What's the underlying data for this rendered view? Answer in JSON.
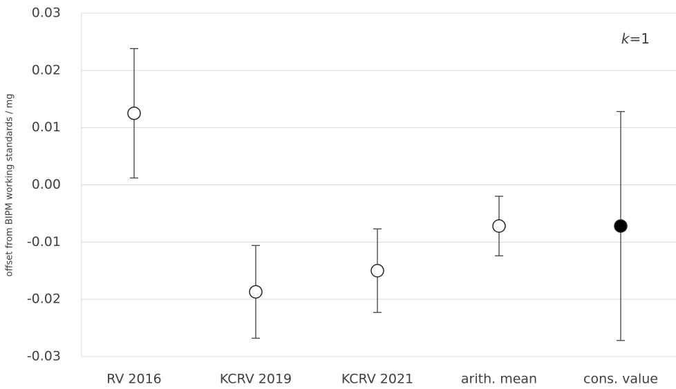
{
  "chart_data": {
    "type": "errorbar",
    "ylabel": "offset from BIPM working standards / mg",
    "annotation": "k=1",
    "categories": [
      "RV 2016",
      "KCRV 2019",
      "KCRV 2021",
      "arith. mean",
      "cons. value"
    ],
    "values": [
      0.0125,
      -0.0187,
      -0.015,
      -0.0072,
      -0.0072
    ],
    "errors": [
      0.0113,
      0.0081,
      0.0073,
      0.0052,
      0.02
    ],
    "marker_fills": [
      "#ffffff",
      "#ffffff",
      "#ffffff",
      "#ffffff",
      "#000000"
    ],
    "color": "#404040",
    "ylim": [
      -0.03,
      0.03
    ],
    "yticks": [
      -0.03,
      -0.02,
      -0.01,
      {
        "value": 0,
        "label": "0.00"
      },
      0.01,
      0.02,
      0.03
    ],
    "grid": true
  }
}
